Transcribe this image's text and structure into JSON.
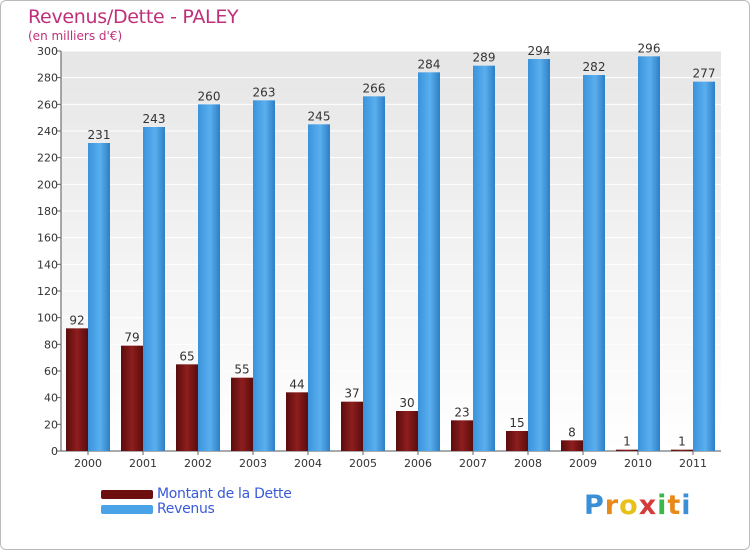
{
  "header": {
    "title": "Revenus/Dette - PALEY",
    "subtitle": "(en milliers d'€)"
  },
  "chart_data": {
    "type": "bar",
    "title": "Revenus/Dette - PALEY",
    "ylabel": "(en milliers d'€)",
    "xlabel": "",
    "ylim": [
      0,
      300
    ],
    "ytick_step": 20,
    "grid": true,
    "legend_position": "bottom-left",
    "categories": [
      "2000",
      "2001",
      "2002",
      "2003",
      "2004",
      "2005",
      "2006",
      "2007",
      "2008",
      "2009",
      "2010",
      "2011"
    ],
    "series": [
      {
        "name": "Montant de la Dette",
        "color": "#8b1c1c",
        "values": [
          92,
          79,
          65,
          55,
          44,
          37,
          30,
          23,
          15,
          8,
          1,
          1
        ]
      },
      {
        "name": "Revenus",
        "color": "#4aa3e6",
        "values": [
          231,
          243,
          260,
          263,
          245,
          266,
          284,
          289,
          294,
          282,
          296,
          277
        ]
      }
    ]
  },
  "legend": {
    "items": [
      {
        "label": "Montant de la Dette",
        "color": "#6e0f0f"
      },
      {
        "label": "Revenus",
        "color": "#4aa3e6"
      }
    ]
  },
  "logo": {
    "letters": [
      "P",
      "r",
      "o",
      "x",
      "i",
      "t",
      "i"
    ],
    "colors": [
      "#3b8fd6",
      "#e88a1a",
      "#e8c21a",
      "#d63b3b",
      "#3bb84a",
      "#e88a1a",
      "#3b8fd6"
    ]
  }
}
